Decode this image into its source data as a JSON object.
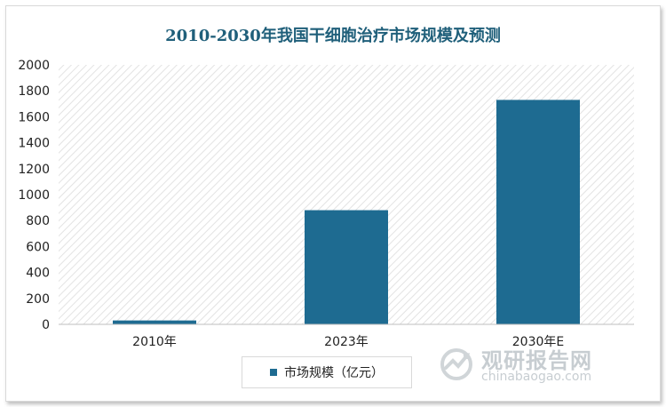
{
  "chart_data": {
    "type": "bar",
    "title": "2010-2030年我国干细胞治疗市场规模及预测",
    "categories": [
      "2010年",
      "2023年",
      "2030年E"
    ],
    "series": [
      {
        "name": "市场规模（亿元）",
        "values": [
          30,
          880,
          1730
        ]
      }
    ],
    "ylim": [
      0,
      2000
    ],
    "yticks": [
      0,
      200,
      400,
      600,
      800,
      1000,
      1200,
      1400,
      1600,
      1800,
      2000
    ],
    "grid": false,
    "legend_position": "bottom",
    "colors": {
      "bar": "#1e6b91",
      "title": "#1f5f7a"
    }
  },
  "watermark": {
    "brand_cn": "观研报告网",
    "brand_en": "chinabaogao.com",
    "icon": "chart-logo-icon"
  }
}
